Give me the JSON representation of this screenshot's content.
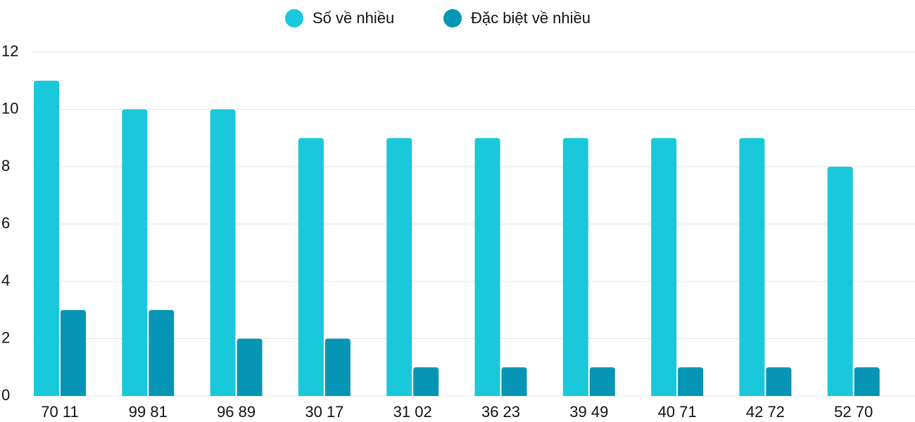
{
  "chart_data": {
    "type": "bar",
    "categories": [
      "70 11",
      "99 81",
      "96 89",
      "30 17",
      "31 02",
      "36 23",
      "39 49",
      "40 71",
      "42 72",
      "52 70"
    ],
    "series": [
      {
        "name": "Số về nhiều",
        "color": "#1ac8db",
        "values": [
          11,
          10,
          10,
          9,
          9,
          9,
          9,
          9,
          9,
          8
        ]
      },
      {
        "name": "Đặc biệt về nhiều",
        "color": "#0795b5",
        "values": [
          3,
          3,
          2,
          2,
          1,
          1,
          1,
          1,
          1,
          1
        ]
      }
    ],
    "ylim": [
      0,
      12
    ],
    "yticks": [
      0,
      2,
      4,
      6,
      8,
      10,
      12
    ],
    "grid": true,
    "legend": "top"
  }
}
